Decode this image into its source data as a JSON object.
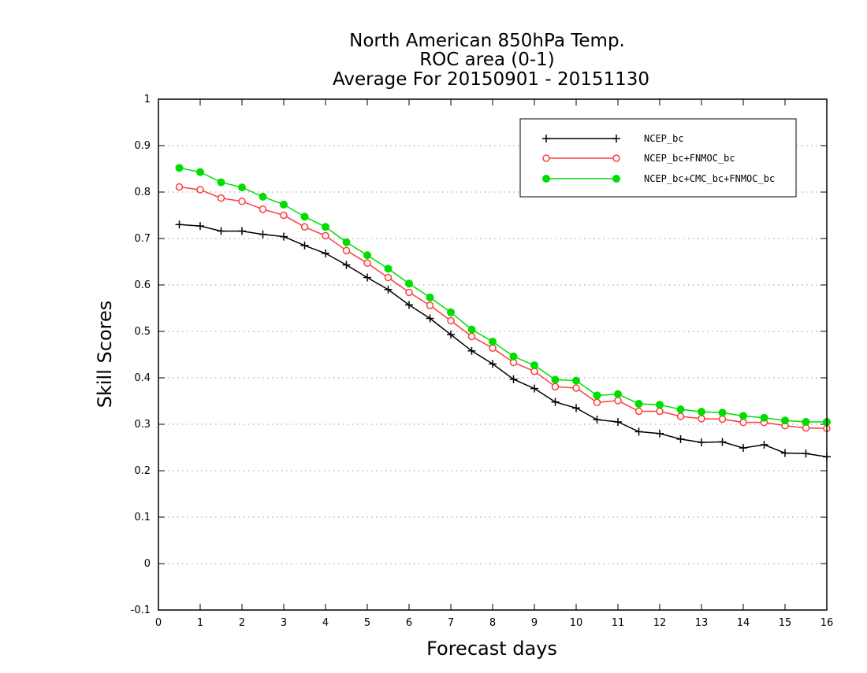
{
  "chart_data": {
    "type": "line",
    "title_lines": [
      "North American 850hPa Temp.",
      "ROC area (0-1)",
      "Average For 20150901 - 20151130"
    ],
    "xlabel": "Forecast days",
    "ylabel": "Skill Scores",
    "xlim": [
      0,
      16
    ],
    "ylim": [
      -0.1,
      1
    ],
    "x_ticks": [
      0,
      1,
      2,
      3,
      4,
      5,
      6,
      7,
      8,
      9,
      10,
      11,
      12,
      13,
      14,
      15,
      16
    ],
    "x_tick_labels": [
      "0",
      "1",
      "2",
      "3",
      "4",
      "5",
      "6",
      "7",
      "8",
      "9",
      "10",
      "11",
      "12",
      "13",
      "14",
      "15",
      "16"
    ],
    "y_ticks": [
      -0.1,
      0,
      0.1,
      0.2,
      0.3,
      0.4,
      0.5,
      0.6,
      0.7,
      0.8,
      0.9,
      1
    ],
    "y_tick_labels": [
      "-0.1",
      "0",
      "0.1",
      "0.2",
      "0.3",
      "0.4",
      "0.5",
      "0.6",
      "0.7",
      "0.8",
      "0.9",
      "1"
    ],
    "grid": "horizontal dotted",
    "legend_position": "top-right",
    "x": [
      0.5,
      1,
      1.5,
      2,
      2.5,
      3,
      3.5,
      4,
      4.5,
      5,
      5.5,
      6,
      6.5,
      7,
      7.5,
      8,
      8.5,
      9,
      9.5,
      10,
      10.5,
      11,
      11.5,
      12,
      12.5,
      13,
      13.5,
      14,
      14.5,
      15,
      15.5,
      16
    ],
    "series": [
      {
        "name": "NCEP_bc",
        "color": "#000000",
        "marker": "plus",
        "values": [
          0.73,
          0.727,
          0.716,
          0.716,
          0.709,
          0.704,
          0.685,
          0.668,
          0.643,
          0.616,
          0.59,
          0.557,
          0.528,
          0.493,
          0.458,
          0.43,
          0.397,
          0.377,
          0.348,
          0.335,
          0.31,
          0.305,
          0.284,
          0.28,
          0.268,
          0.261,
          0.262,
          0.249,
          0.256,
          0.238,
          0.237,
          0.23
        ]
      },
      {
        "name": "NCEP_bc+FNMOC_bc",
        "color": "#ff3b3b",
        "marker": "open-circle",
        "values": [
          0.811,
          0.805,
          0.787,
          0.78,
          0.763,
          0.75,
          0.725,
          0.706,
          0.674,
          0.647,
          0.616,
          0.584,
          0.556,
          0.523,
          0.489,
          0.464,
          0.433,
          0.414,
          0.381,
          0.378,
          0.347,
          0.351,
          0.328,
          0.328,
          0.317,
          0.312,
          0.311,
          0.304,
          0.304,
          0.297,
          0.292,
          0.291
        ]
      },
      {
        "name": "NCEP_bc+CMC_bc+FNMOC_bc",
        "color": "#00dd00",
        "marker": "filled-circle",
        "values": [
          0.852,
          0.843,
          0.821,
          0.81,
          0.79,
          0.773,
          0.747,
          0.725,
          0.692,
          0.664,
          0.635,
          0.603,
          0.573,
          0.541,
          0.504,
          0.478,
          0.446,
          0.427,
          0.396,
          0.394,
          0.362,
          0.365,
          0.344,
          0.342,
          0.332,
          0.327,
          0.325,
          0.318,
          0.314,
          0.308,
          0.305,
          0.305
        ]
      }
    ]
  }
}
